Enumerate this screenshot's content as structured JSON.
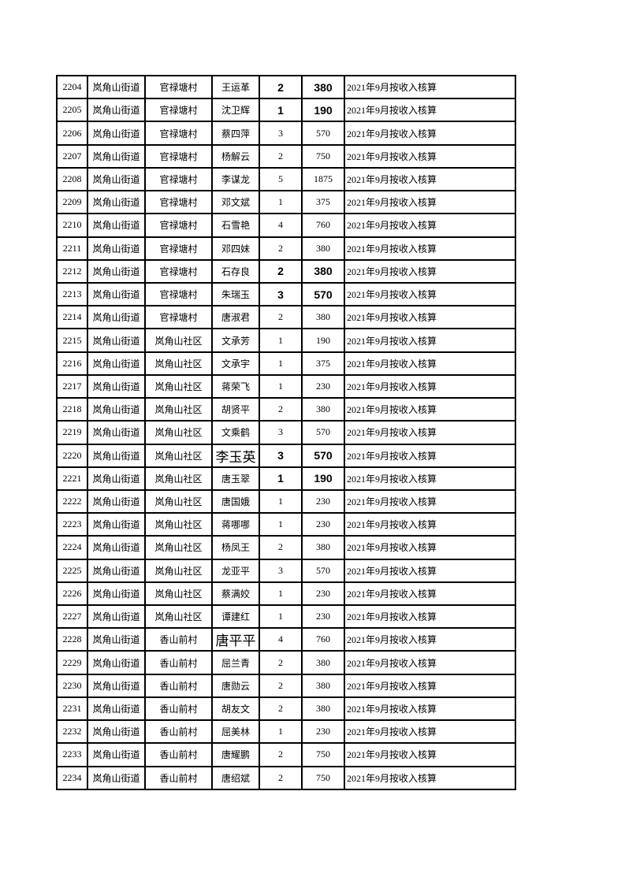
{
  "document": {
    "note_text": "2021年9月按收入核算",
    "street_name": "岚角山街道",
    "rows": [
      {
        "id": "2204",
        "street": "岚角山街道",
        "village": "官禄塘村",
        "name": "王运革",
        "count": "2",
        "amount": "380",
        "note": "2021年9月按收入核算",
        "emphasis": "bold-numbers"
      },
      {
        "id": "2205",
        "street": "岚角山街道",
        "village": "官禄塘村",
        "name": "沈卫辉",
        "count": "1",
        "amount": "190",
        "note": "2021年9月按收入核算",
        "emphasis": "bold-numbers"
      },
      {
        "id": "2206",
        "street": "岚角山街道",
        "village": "官禄塘村",
        "name": "蔡四萍",
        "count": "3",
        "amount": "570",
        "note": "2021年9月按收入核算",
        "emphasis": ""
      },
      {
        "id": "2207",
        "street": "岚角山街道",
        "village": "官禄塘村",
        "name": "杨解云",
        "count": "2",
        "amount": "750",
        "note": "2021年9月按收入核算",
        "emphasis": ""
      },
      {
        "id": "2208",
        "street": "岚角山街道",
        "village": "官禄塘村",
        "name": "李谋龙",
        "count": "5",
        "amount": "1875",
        "note": "2021年9月按收入核算",
        "emphasis": ""
      },
      {
        "id": "2209",
        "street": "岚角山街道",
        "village": "官禄塘村",
        "name": "邓文斌",
        "count": "1",
        "amount": "375",
        "note": "2021年9月按收入核算",
        "emphasis": ""
      },
      {
        "id": "2210",
        "street": "岚角山街道",
        "village": "官禄塘村",
        "name": "石雪艳",
        "count": "4",
        "amount": "760",
        "note": "2021年9月按收入核算",
        "emphasis": ""
      },
      {
        "id": "2211",
        "street": "岚角山街道",
        "village": "官禄塘村",
        "name": "邓四妹",
        "count": "2",
        "amount": "380",
        "note": "2021年9月按收入核算",
        "emphasis": ""
      },
      {
        "id": "2212",
        "street": "岚角山街道",
        "village": "官禄塘村",
        "name": "石存良",
        "count": "2",
        "amount": "380",
        "note": "2021年9月按收入核算",
        "emphasis": "bold-numbers"
      },
      {
        "id": "2213",
        "street": "岚角山街道",
        "village": "官禄塘村",
        "name": "朱瑞玉",
        "count": "3",
        "amount": "570",
        "note": "2021年9月按收入核算",
        "emphasis": "bold-numbers"
      },
      {
        "id": "2214",
        "street": "岚角山街道",
        "village": "官禄塘村",
        "name": "唐淑君",
        "count": "2",
        "amount": "380",
        "note": "2021年9月按收入核算",
        "emphasis": ""
      },
      {
        "id": "2215",
        "street": "岚角山街道",
        "village": "岚角山社区",
        "name": "文承芳",
        "count": "1",
        "amount": "190",
        "note": "2021年9月按收入核算",
        "emphasis": ""
      },
      {
        "id": "2216",
        "street": "岚角山街道",
        "village": "岚角山社区",
        "name": "文承宇",
        "count": "1",
        "amount": "375",
        "note": "2021年9月按收入核算",
        "emphasis": ""
      },
      {
        "id": "2217",
        "street": "岚角山街道",
        "village": "岚角山社区",
        "name": "蒋荣飞",
        "count": "1",
        "amount": "230",
        "note": "2021年9月按收入核算",
        "emphasis": ""
      },
      {
        "id": "2218",
        "street": "岚角山街道",
        "village": "岚角山社区",
        "name": "胡贤平",
        "count": "2",
        "amount": "380",
        "note": "2021年9月按收入核算",
        "emphasis": ""
      },
      {
        "id": "2219",
        "street": "岚角山街道",
        "village": "岚角山社区",
        "name": "文乘鹤",
        "count": "3",
        "amount": "570",
        "note": "2021年9月按收入核算",
        "emphasis": ""
      },
      {
        "id": "2220",
        "street": "岚角山街道",
        "village": "岚角山社区",
        "name": "李玉英",
        "count": "3",
        "amount": "570",
        "note": "2021年9月按收入核算",
        "emphasis": "bold-numbers large-name"
      },
      {
        "id": "2221",
        "street": "岚角山街道",
        "village": "岚角山社区",
        "name": "唐玉翠",
        "count": "1",
        "amount": "190",
        "note": "2021年9月按收入核算",
        "emphasis": "bold-numbers"
      },
      {
        "id": "2222",
        "street": "岚角山街道",
        "village": "岚角山社区",
        "name": "唐国娥",
        "count": "1",
        "amount": "230",
        "note": "2021年9月按收入核算",
        "emphasis": ""
      },
      {
        "id": "2223",
        "street": "岚角山街道",
        "village": "岚角山社区",
        "name": "蒋哪哪",
        "count": "1",
        "amount": "230",
        "note": "2021年9月按收入核算",
        "emphasis": ""
      },
      {
        "id": "2224",
        "street": "岚角山街道",
        "village": "岚角山社区",
        "name": "杨凤王",
        "count": "2",
        "amount": "380",
        "note": "2021年9月按收入核算",
        "emphasis": ""
      },
      {
        "id": "2225",
        "street": "岚角山街道",
        "village": "岚角山社区",
        "name": "龙亚平",
        "count": "3",
        "amount": "570",
        "note": "2021年9月按收入核算",
        "emphasis": ""
      },
      {
        "id": "2226",
        "street": "岚角山街道",
        "village": "岚角山社区",
        "name": "蔡满姣",
        "count": "1",
        "amount": "230",
        "note": "2021年9月按收入核算",
        "emphasis": ""
      },
      {
        "id": "2227",
        "street": "岚角山街道",
        "village": "岚角山社区",
        "name": "谭建红",
        "count": "1",
        "amount": "230",
        "note": "2021年9月按收入核算",
        "emphasis": ""
      },
      {
        "id": "2228",
        "street": "岚角山街道",
        "village": "香山前村",
        "name": "唐平平",
        "count": "4",
        "amount": "760",
        "note": "2021年9月按收入核算",
        "emphasis": "large-name"
      },
      {
        "id": "2229",
        "street": "岚角山街道",
        "village": "香山前村",
        "name": "屈兰青",
        "count": "2",
        "amount": "380",
        "note": "2021年9月按收入核算",
        "emphasis": ""
      },
      {
        "id": "2230",
        "street": "岚角山街道",
        "village": "香山前村",
        "name": "唐勋云",
        "count": "2",
        "amount": "380",
        "note": "2021年9月按收入核算",
        "emphasis": ""
      },
      {
        "id": "2231",
        "street": "岚角山街道",
        "village": "香山前村",
        "name": "胡友文",
        "count": "2",
        "amount": "380",
        "note": "2021年9月按收入核算",
        "emphasis": ""
      },
      {
        "id": "2232",
        "street": "岚角山街道",
        "village": "香山前村",
        "name": "屈美林",
        "count": "1",
        "amount": "230",
        "note": "2021年9月按收入核算",
        "emphasis": ""
      },
      {
        "id": "2233",
        "street": "岚角山街道",
        "village": "香山前村",
        "name": "唐耀鹏",
        "count": "2",
        "amount": "750",
        "note": "2021年9月按收入核算",
        "emphasis": ""
      },
      {
        "id": "2234",
        "street": "岚角山街道",
        "village": "香山前村",
        "name": "唐绍斌",
        "count": "2",
        "amount": "750",
        "note": "2021年9月按收入核算",
        "emphasis": ""
      }
    ]
  }
}
